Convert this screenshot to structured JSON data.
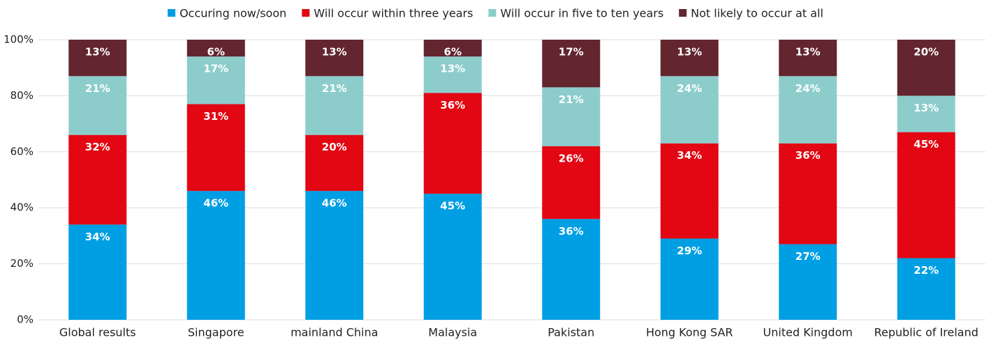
{
  "chart_data": {
    "type": "stacked_bar",
    "categories": [
      "Global results",
      "Singapore",
      "mainland China",
      "Malaysia",
      "Pakistan",
      "Hong Kong SAR",
      "United Kingdom",
      "Republic of Ireland"
    ],
    "series": [
      {
        "name": "Occuring now/soon",
        "color": "#009fe3",
        "values": [
          34,
          46,
          46,
          45,
          36,
          29,
          27,
          22
        ],
        "value_labels": [
          "34%",
          "46%",
          "46%",
          "45%",
          "36%",
          "29%",
          "27%",
          "22%"
        ]
      },
      {
        "name": "Will occur within three years",
        "color": "#e30613",
        "values": [
          32,
          31,
          20,
          36,
          26,
          34,
          36,
          45
        ],
        "value_labels": [
          "32%",
          "31%",
          "20%",
          "36%",
          "26%",
          "34%",
          "36%",
          "45%"
        ]
      },
      {
        "name": "Will occur in five to ten years",
        "color": "#8ccdcc",
        "values": [
          21,
          17,
          21,
          13,
          21,
          24,
          24,
          13
        ],
        "value_labels": [
          "21%",
          "17%",
          "21%",
          "13%",
          "21%",
          "24%",
          "24%",
          "13%"
        ]
      },
      {
        "name": "Not likely to occur at all",
        "color": "#63252e",
        "values": [
          13,
          6,
          13,
          6,
          17,
          13,
          13,
          20
        ],
        "value_labels": [
          "13%",
          "6%",
          "13%",
          "6%",
          "17%",
          "13%",
          "13%",
          "20%"
        ]
      }
    ],
    "ylim": [
      0,
      100
    ],
    "yticks": [
      {
        "value": 0,
        "label": "0%"
      },
      {
        "value": 20,
        "label": "20%"
      },
      {
        "value": 40,
        "label": "40%"
      },
      {
        "value": 60,
        "label": "60%"
      },
      {
        "value": 80,
        "label": "80%"
      },
      {
        "value": 100,
        "label": "100%"
      }
    ],
    "grid": true,
    "legend": "top"
  }
}
